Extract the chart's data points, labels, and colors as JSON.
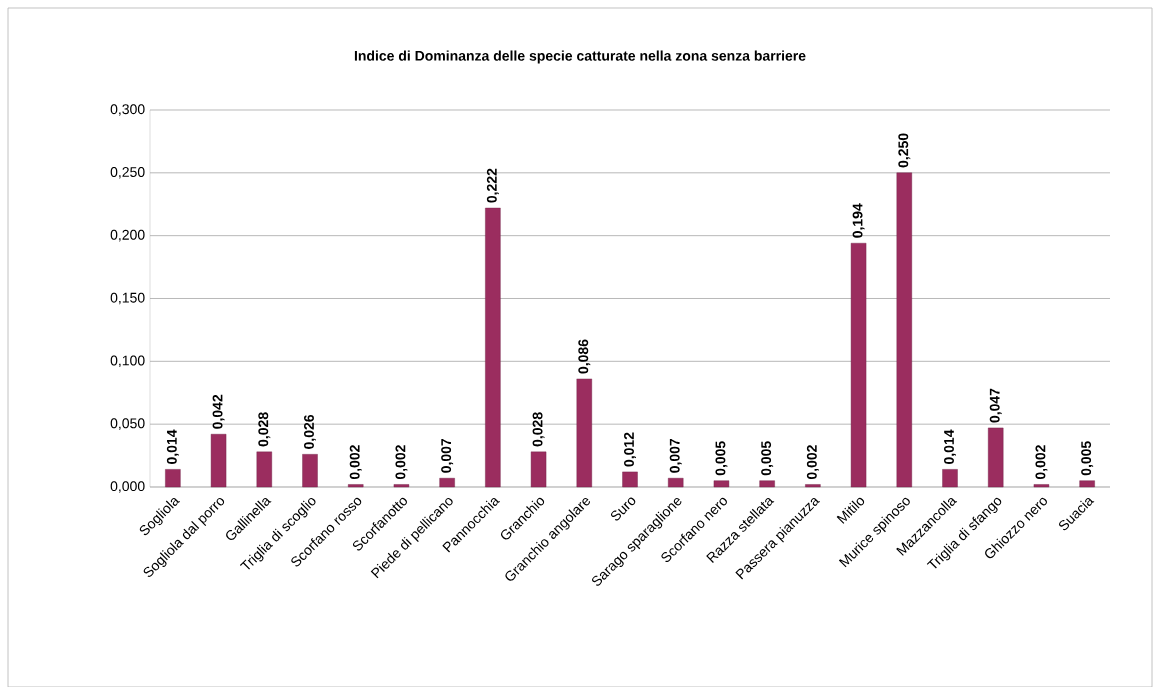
{
  "chart_data": {
    "type": "bar",
    "title": "Indice di Dominanza delle specie catturate nella zona senza barriere",
    "categories": [
      "Sogliola",
      "Sogliola dal porro",
      "Gallinella",
      "Triglia di scoglio",
      "Scorfano rosso",
      "Scorfanotto",
      "Piede di pellicano",
      "Pannocchia",
      "Granchio",
      "Granchio angolare",
      "Suro",
      "Sarago sparaglione",
      "Scorfano nero",
      "Razza stellata",
      "Passera pianuzza",
      "Mitilo",
      "Murice spinoso",
      "Mazzancolla",
      "Triglia di sfango",
      "Ghiozzo nero",
      "Suacia"
    ],
    "values": [
      0.014,
      0.042,
      0.028,
      0.026,
      0.002,
      0.002,
      0.007,
      0.222,
      0.028,
      0.086,
      0.012,
      0.007,
      0.005,
      0.005,
      0.002,
      0.194,
      0.25,
      0.014,
      0.047,
      0.002,
      0.005
    ],
    "value_labels": [
      "0,014",
      "0,042",
      "0,028",
      "0,026",
      "0,002",
      "0,002",
      "0,007",
      "0,222",
      "0,028",
      "0,086",
      "0,012",
      "0,007",
      "0,005",
      "0,005",
      "0,002",
      "0,194",
      "0,250",
      "0,014",
      "0,047",
      "0,002",
      "0,005"
    ],
    "color": "#9b2d5f",
    "ylim": [
      0,
      0.3
    ],
    "yticks": [
      {
        "value": 0,
        "label": "0,000"
      },
      {
        "value": 0.05,
        "label": "0,050"
      },
      {
        "value": 0.1,
        "label": "0,100"
      },
      {
        "value": 0.15,
        "label": "0,150"
      },
      {
        "value": 0.2,
        "label": "0,200"
      },
      {
        "value": 0.25,
        "label": "0,250"
      },
      {
        "value": 0.3,
        "label": "0,300"
      }
    ],
    "grid": "y"
  }
}
